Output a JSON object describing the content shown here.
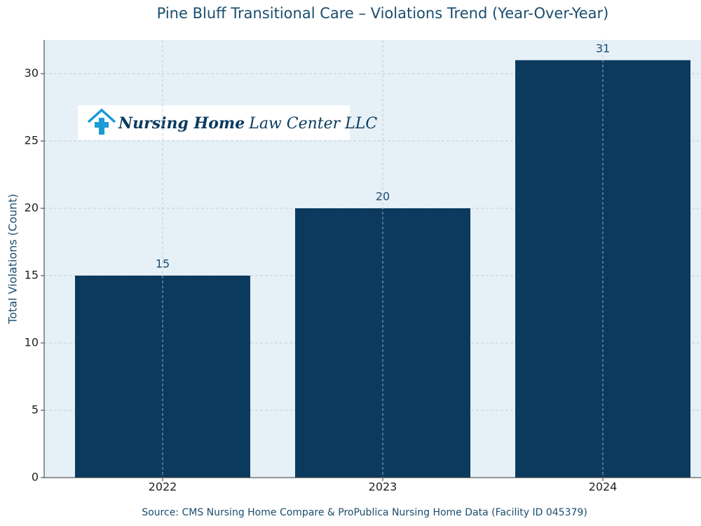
{
  "chart_data": {
    "type": "bar",
    "title": "Pine Bluff Transitional Care – Violations Trend (Year-Over-Year)",
    "ylabel": "Total Violations (Count)",
    "source": "Source: CMS Nursing Home Compare & ProPublica Nursing Home Data (Facility ID 045379)",
    "logo": {
      "bold": "Nursing Home",
      "rest": "Law Center LLC"
    },
    "categories": [
      "2022",
      "2023",
      "2024"
    ],
    "values": [
      15,
      20,
      31
    ],
    "color": "#0b3a5e",
    "ylim": [
      0,
      32.5
    ],
    "yticks": [
      0,
      5,
      10,
      15,
      20,
      25,
      30
    ],
    "grid": true
  }
}
